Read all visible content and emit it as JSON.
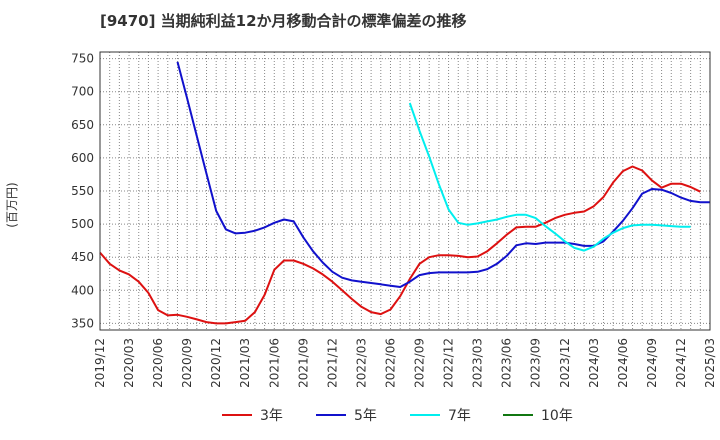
{
  "chart_data": {
    "type": "line",
    "title": "[9470]  当期純利益12か月移動合計の標準偏差の推移",
    "ylabel": "(百万円)",
    "xlabel": "",
    "ylim": [
      340,
      760
    ],
    "yticks": [
      350,
      400,
      450,
      500,
      550,
      600,
      650,
      700,
      750
    ],
    "xlim": [
      "2019-12",
      "2025-03"
    ],
    "xticks": [
      "2019/12",
      "2020/03",
      "2020/06",
      "2020/09",
      "2020/12",
      "2021/03",
      "2021/06",
      "2021/09",
      "2021/12",
      "2022/03",
      "2022/06",
      "2022/09",
      "2022/12",
      "2023/03",
      "2023/06",
      "2023/09",
      "2023/12",
      "2024/03",
      "2024/06",
      "2024/09",
      "2024/12",
      "2025/03"
    ],
    "grid": true,
    "legend_position": "bottom",
    "series": [
      {
        "name": "3年",
        "color": "#dd1111",
        "start": "2019-12",
        "values": [
          457,
          440,
          430,
          424,
          413,
          396,
          370,
          362,
          363,
          360,
          356,
          352,
          350,
          350,
          352,
          354,
          367,
          393,
          431,
          445,
          445,
          440,
          433,
          424,
          413,
          400,
          387,
          375,
          367,
          364,
          371,
          391,
          417,
          440,
          450,
          453,
          453,
          452,
          450,
          451,
          459,
          471,
          484,
          495,
          496,
          496,
          502,
          509,
          514,
          517,
          519,
          527,
          541,
          563,
          580,
          587,
          581,
          566,
          555,
          561,
          561,
          556,
          549
        ]
      },
      {
        "name": "5年",
        "color": "#1111cc",
        "start": "2020-08",
        "values": [
          745,
          690,
          633,
          576,
          520,
          492,
          486,
          487,
          490,
          495,
          502,
          507,
          504,
          480,
          459,
          442,
          428,
          419,
          415,
          413,
          411,
          409,
          407,
          405,
          413,
          423,
          426,
          427,
          427,
          427,
          427,
          428,
          432,
          440,
          452,
          468,
          471,
          470,
          472,
          472,
          472,
          470,
          467,
          467,
          474,
          489,
          505,
          524,
          546,
          553,
          552,
          547,
          540,
          535,
          533,
          533
        ]
      },
      {
        "name": "7年",
        "color": "#00eeee",
        "start": "2022-08",
        "values": [
          683,
          641,
          602,
          560,
          522,
          502,
          499,
          501,
          504,
          507,
          511,
          514,
          514,
          509,
          497,
          486,
          474,
          464,
          460,
          466,
          478,
          487,
          494,
          498,
          499,
          499,
          498,
          497,
          496,
          496
        ]
      },
      {
        "name": "10年",
        "color": "#117711",
        "start": "2024-12",
        "values": []
      }
    ]
  }
}
